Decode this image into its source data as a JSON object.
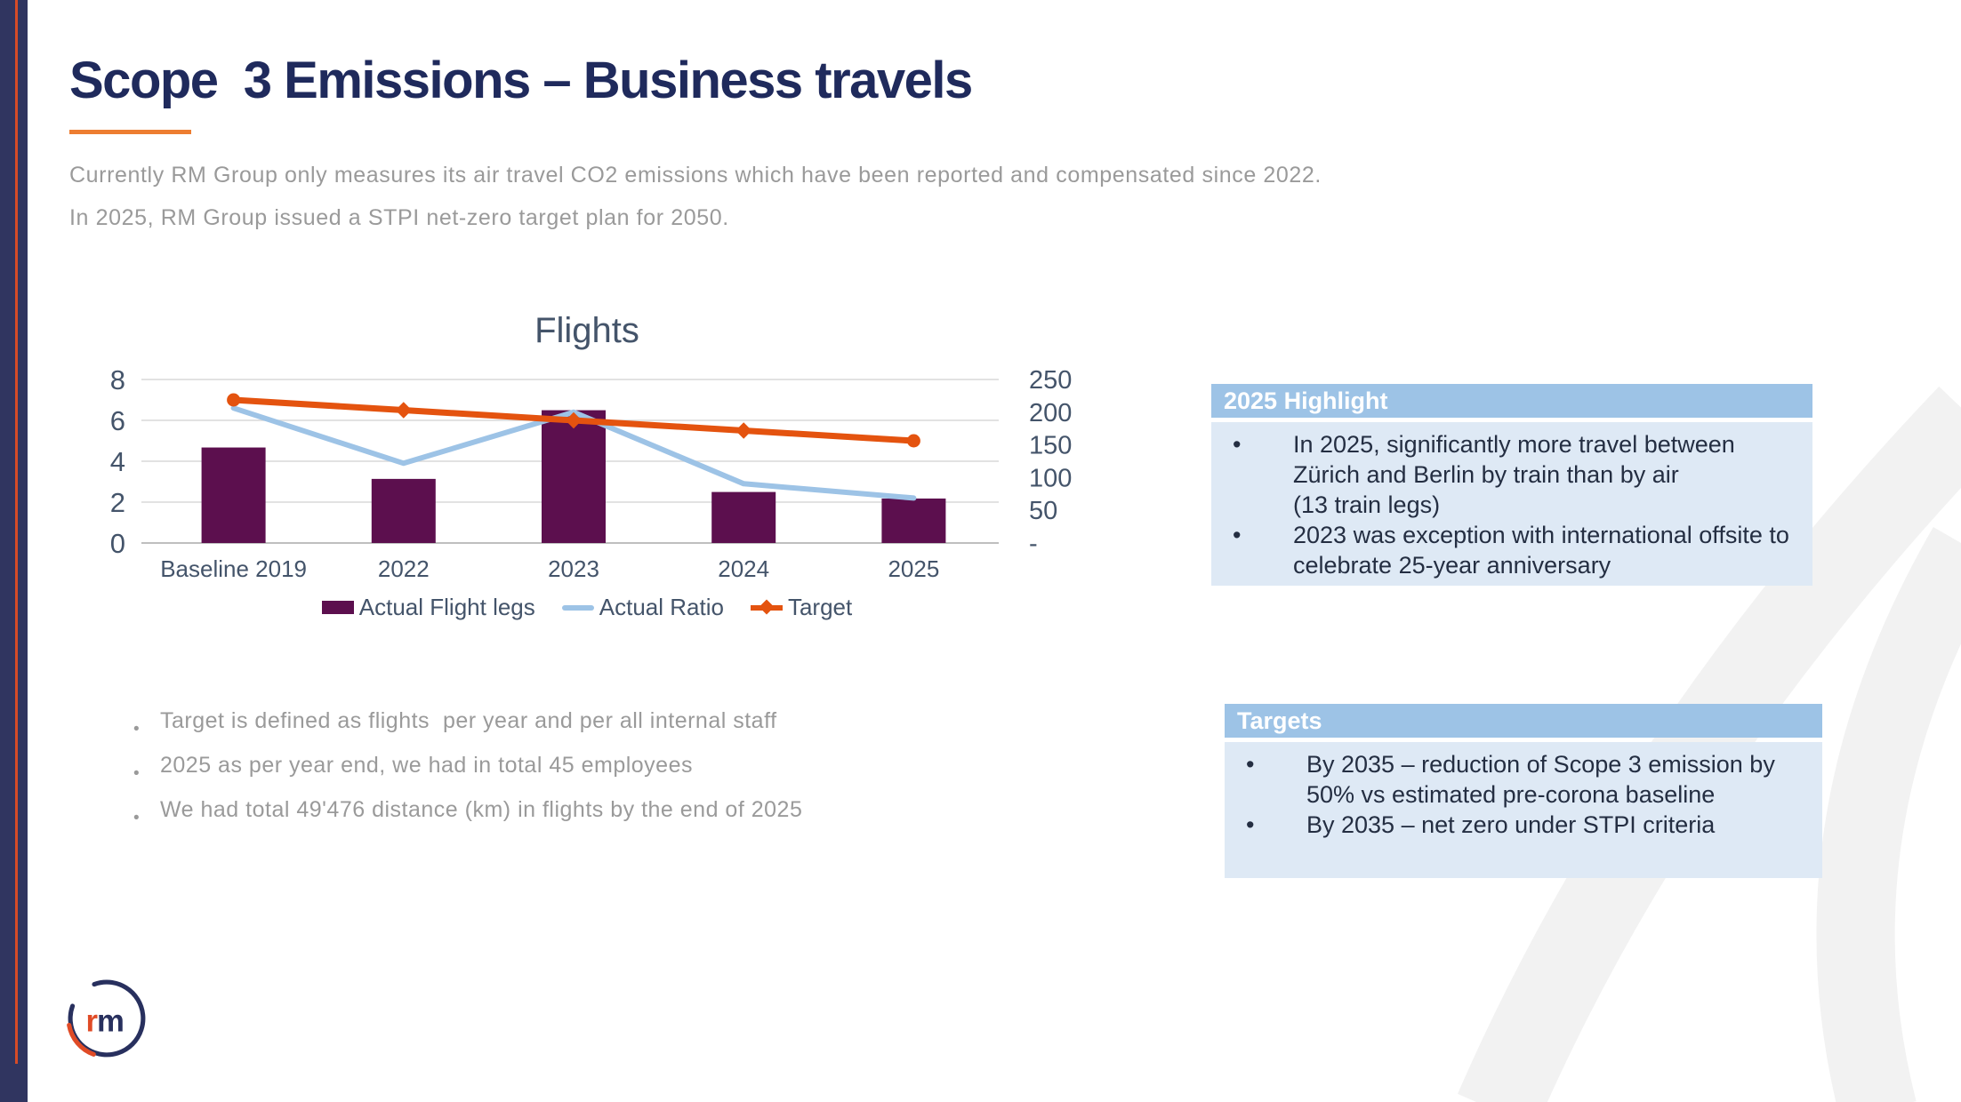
{
  "slide": {
    "title": "Scope  3 Emissions – Business travels",
    "intro_lines": [
      "Currently RM Group only measures its air travel CO2 emissions which have been reported and compensated since 2022.",
      "In 2025, RM Group issued a STPI net-zero target plan for 2050."
    ],
    "notes": [
      "Target is defined as flights  per year and per all internal staff",
      "2025 as per year end, we had in total 45 employees",
      "We had total 49'476 distance (km) in flights by the end of 2025"
    ]
  },
  "chart_data": {
    "type": "bar+line combo",
    "title": "Flights",
    "categories": [
      "Baseline 2019",
      "2022",
      "2023",
      "2024",
      "2025"
    ],
    "series": [
      {
        "name": "Actual Flight legs",
        "type": "bar",
        "axis": "right",
        "values": [
          146,
          98,
          203,
          78,
          68
        ]
      },
      {
        "name": "Actual Ratio",
        "type": "line",
        "axis": "left",
        "values": [
          6.6,
          3.9,
          6.4,
          2.9,
          2.2
        ]
      },
      {
        "name": "Target",
        "type": "line",
        "axis": "left",
        "values": [
          7.0,
          6.5,
          6.0,
          5.5,
          5.0
        ]
      }
    ],
    "left_axis": {
      "min": 0,
      "max": 8,
      "ticks": [
        "8",
        "6",
        "4",
        "2",
        "0"
      ]
    },
    "right_axis": {
      "min": 0,
      "max": 250,
      "tick_labels": [
        "250",
        "200",
        "150",
        "100",
        "50",
        "-"
      ]
    },
    "grid": true,
    "legend_position": "bottom"
  },
  "highlight_box": {
    "title": "2025 Highlight",
    "bullets": [
      "In 2025, significantly more travel between Zürich and Berlin by train than by air\n(13 train legs)",
      "2023 was exception with international offsite to celebrate 25-year anniversary"
    ]
  },
  "targets_box": {
    "title": "Targets",
    "bullets": [
      "By 2035 – reduction of Scope 3 emission by 50% vs estimated pre-corona baseline",
      "By 2035 – net zero under STPI criteria"
    ]
  },
  "logo": {
    "mark_r": "r",
    "mark_m": "m"
  },
  "colors": {
    "title_navy": "#1F2A5C",
    "underline_orange": "#ED7D31",
    "body_gray": "#9A9A9A",
    "axis_slate": "#44546A",
    "bar_purple": "#5C0F4E",
    "line_blue": "#9DC3E6",
    "line_orange": "#E4530F",
    "box_header_blue": "#9DC3E6",
    "box_body_blue": "#DEE9F5",
    "box_text_navy": "#242E42",
    "grid_gray": "#D9D9D9",
    "axisline_gray": "#BFBFBF",
    "swoosh_gray": "#F2F2F2",
    "sidebar_navy": "#303560",
    "sidebar_orange": "#D64B27",
    "logo_navy": "#28305E",
    "logo_orange": "#E04B26"
  }
}
